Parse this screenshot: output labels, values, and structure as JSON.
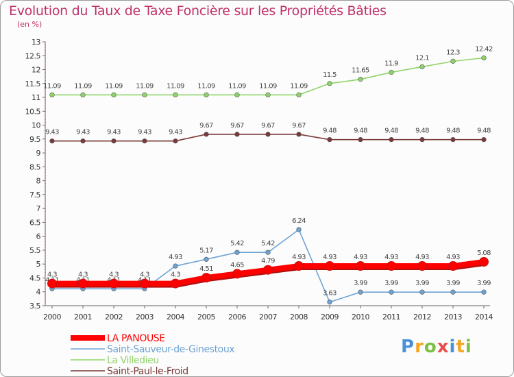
{
  "chart_data": {
    "type": "line",
    "title": "Evolution du Taux de Taxe Foncière sur les Propriétés Bâties",
    "ylabel": "(en %)",
    "xlabel": "",
    "ylim": [
      3.5,
      13
    ],
    "y_ticks": [
      "3.5",
      "4",
      "4.5",
      "5",
      "5.5",
      "6",
      "6.5",
      "7",
      "7.5",
      "8",
      "8.5",
      "9",
      "9.5",
      "10",
      "10.5",
      "11",
      "11.5",
      "12",
      "12.5",
      "13"
    ],
    "categories": [
      "2000",
      "2001",
      "2002",
      "2003",
      "2004",
      "2005",
      "2006",
      "2007",
      "2008",
      "2009",
      "2010",
      "2011",
      "2012",
      "2013",
      "2014"
    ],
    "series": [
      {
        "name": "Saint-Paul-le-Froid",
        "color": "#7a3a3a",
        "values": [
          9.43,
          9.43,
          9.43,
          9.43,
          9.43,
          9.67,
          9.67,
          9.67,
          9.67,
          9.48,
          9.48,
          9.48,
          9.48,
          9.48,
          9.48
        ],
        "labels": [
          "9.43",
          "9.43",
          "9.43",
          "9.43",
          "9.43",
          "9.67",
          "9.67",
          "9.67",
          "9.67",
          "9.48",
          "9.48",
          "9.48",
          "9.48",
          "9.48",
          "9.48"
        ]
      },
      {
        "name": "La Villedieu",
        "color": "#8fd46a",
        "values": [
          11.09,
          11.09,
          11.09,
          11.09,
          11.09,
          11.09,
          11.09,
          11.09,
          11.09,
          11.5,
          11.65,
          11.9,
          12.1,
          12.3,
          12.42
        ],
        "labels": [
          "11.09",
          "11.09",
          "11.09",
          "11.09",
          "11.09",
          "11.09",
          "11.09",
          "11.09",
          "11.09",
          "11.5",
          "11.65",
          "11.9",
          "12.1",
          "12.3",
          "12.42"
        ]
      },
      {
        "name": "Saint-Sauveur-de-Ginestoux",
        "color": "#6ea3d4",
        "values": [
          4.11,
          4.11,
          4.11,
          4.11,
          4.93,
          5.17,
          5.42,
          5.42,
          6.24,
          3.63,
          3.99,
          3.99,
          3.99,
          3.99,
          3.99
        ],
        "labels": [
          "4.11",
          "4.11",
          "4.11",
          "4.11",
          "4.93",
          "5.17",
          "5.42",
          "5.42",
          "6.24",
          "3.63",
          "3.99",
          "3.99",
          "3.99",
          "3.99",
          "3.99"
        ]
      },
      {
        "name": "LA PANOUSE",
        "color": "#ff0000",
        "values": [
          4.3,
          4.3,
          4.3,
          4.3,
          4.3,
          4.51,
          4.65,
          4.79,
          4.93,
          4.93,
          4.93,
          4.93,
          4.93,
          4.93,
          5.08
        ],
        "labels": [
          "4.3",
          "4.3",
          "4.3",
          "4.3",
          "4.3",
          "4.51",
          "4.65",
          "4.79",
          "4.93",
          "4.93",
          "4.93",
          "4.93",
          "4.93",
          "4.93",
          "5.08"
        ]
      }
    ],
    "legend": [
      "LA PANOUSE",
      "Saint-Sauveur-de-Ginestoux",
      "La Villedieu",
      "Saint-Paul-le-Froid"
    ],
    "legend_position": "bottom-left",
    "grid": false
  },
  "logo": {
    "letters": [
      "P",
      "r",
      "o",
      "x",
      "i",
      "t",
      "i"
    ],
    "colors": [
      "#4a90d9",
      "#f5a623",
      "#7bc043",
      "#e94e4e",
      "#4a90d9",
      "#f5a623",
      "#7bc043"
    ]
  }
}
